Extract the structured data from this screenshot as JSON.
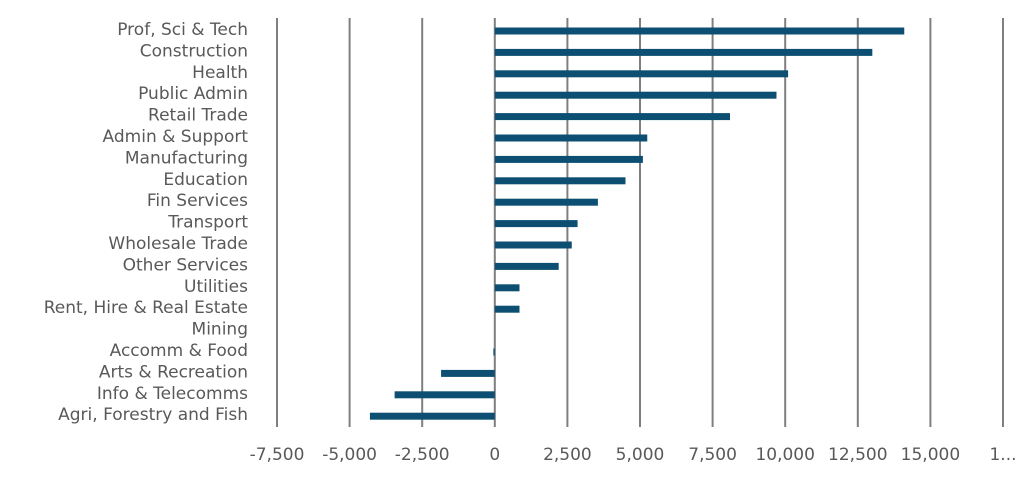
{
  "chart_data": {
    "type": "bar",
    "orientation": "horizontal",
    "title": "",
    "xlabel": "",
    "ylabel": "",
    "categories": [
      "Prof, Sci & Tech",
      "Construction",
      "Health",
      "Public Admin",
      "Retail Trade",
      "Admin & Support",
      "Manufacturing",
      "Education",
      "Fin Services",
      "Transport",
      "Wholesale Trade",
      "Other Services",
      "Utilities",
      "Rent, Hire & Real Estate",
      "Mining",
      "Accomm & Food",
      "Arts & Recreation",
      "Info & Telecomms",
      "Agri, Forestry and Fish"
    ],
    "values": [
      14100,
      13000,
      10100,
      9700,
      8100,
      5250,
      5100,
      4500,
      3550,
      2850,
      2650,
      2200,
      850,
      850,
      0,
      -50,
      -1850,
      -3450,
      -4300
    ],
    "xlim": [
      -7500,
      17500
    ],
    "tick_labels": [
      "-7,500",
      "-5,000",
      "-2,500",
      "0",
      "2,500",
      "5,000",
      "7,500",
      "10,000",
      "12,500",
      "15,000",
      "1..."
    ],
    "grid": true,
    "bar_color": "#0d4f73"
  }
}
